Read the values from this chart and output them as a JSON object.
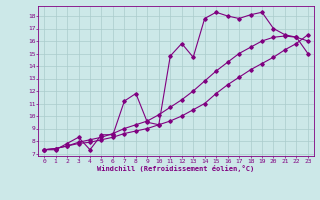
{
  "xlabel": "Windchill (Refroidissement éolien,°C)",
  "background_color": "#cce8e8",
  "line_color": "#800080",
  "xlim": [
    -0.5,
    23.5
  ],
  "ylim": [
    6.8,
    18.8
  ],
  "xticks": [
    0,
    1,
    2,
    3,
    4,
    5,
    6,
    7,
    8,
    9,
    10,
    11,
    12,
    13,
    14,
    15,
    16,
    17,
    18,
    19,
    20,
    21,
    22,
    23
  ],
  "yticks": [
    7,
    8,
    9,
    10,
    11,
    12,
    13,
    14,
    15,
    16,
    17,
    18
  ],
  "series1_x": [
    0,
    1,
    2,
    3,
    4,
    5,
    6,
    7,
    8,
    9,
    10,
    11,
    12,
    13,
    14,
    15,
    16,
    17,
    18,
    19,
    20,
    21,
    22,
    23
  ],
  "series1_y": [
    7.3,
    7.3,
    7.8,
    8.3,
    7.3,
    8.5,
    8.5,
    11.2,
    11.8,
    9.5,
    9.3,
    14.8,
    15.8,
    14.7,
    17.8,
    18.3,
    18.0,
    17.8,
    18.1,
    18.3,
    17.0,
    16.5,
    16.3,
    16.0
  ],
  "series2_x": [
    0,
    1,
    2,
    3,
    4,
    5,
    6,
    7,
    8,
    9,
    10,
    11,
    12,
    13,
    14,
    15,
    16,
    17,
    18,
    19,
    20,
    21,
    22,
    23
  ],
  "series2_y": [
    7.3,
    7.4,
    7.6,
    7.8,
    7.9,
    8.1,
    8.3,
    8.6,
    8.8,
    9.0,
    9.3,
    9.6,
    10.0,
    10.5,
    11.0,
    11.8,
    12.5,
    13.1,
    13.7,
    14.2,
    14.7,
    15.3,
    15.8,
    16.5
  ],
  "series3_x": [
    0,
    1,
    2,
    3,
    4,
    5,
    6,
    7,
    8,
    9,
    10,
    11,
    12,
    13,
    14,
    15,
    16,
    17,
    18,
    19,
    20,
    21,
    22,
    23
  ],
  "series3_y": [
    7.3,
    7.4,
    7.6,
    7.9,
    8.1,
    8.3,
    8.6,
    9.0,
    9.3,
    9.6,
    10.1,
    10.7,
    11.3,
    12.0,
    12.8,
    13.6,
    14.3,
    15.0,
    15.5,
    16.0,
    16.3,
    16.4,
    16.3,
    15.0
  ]
}
